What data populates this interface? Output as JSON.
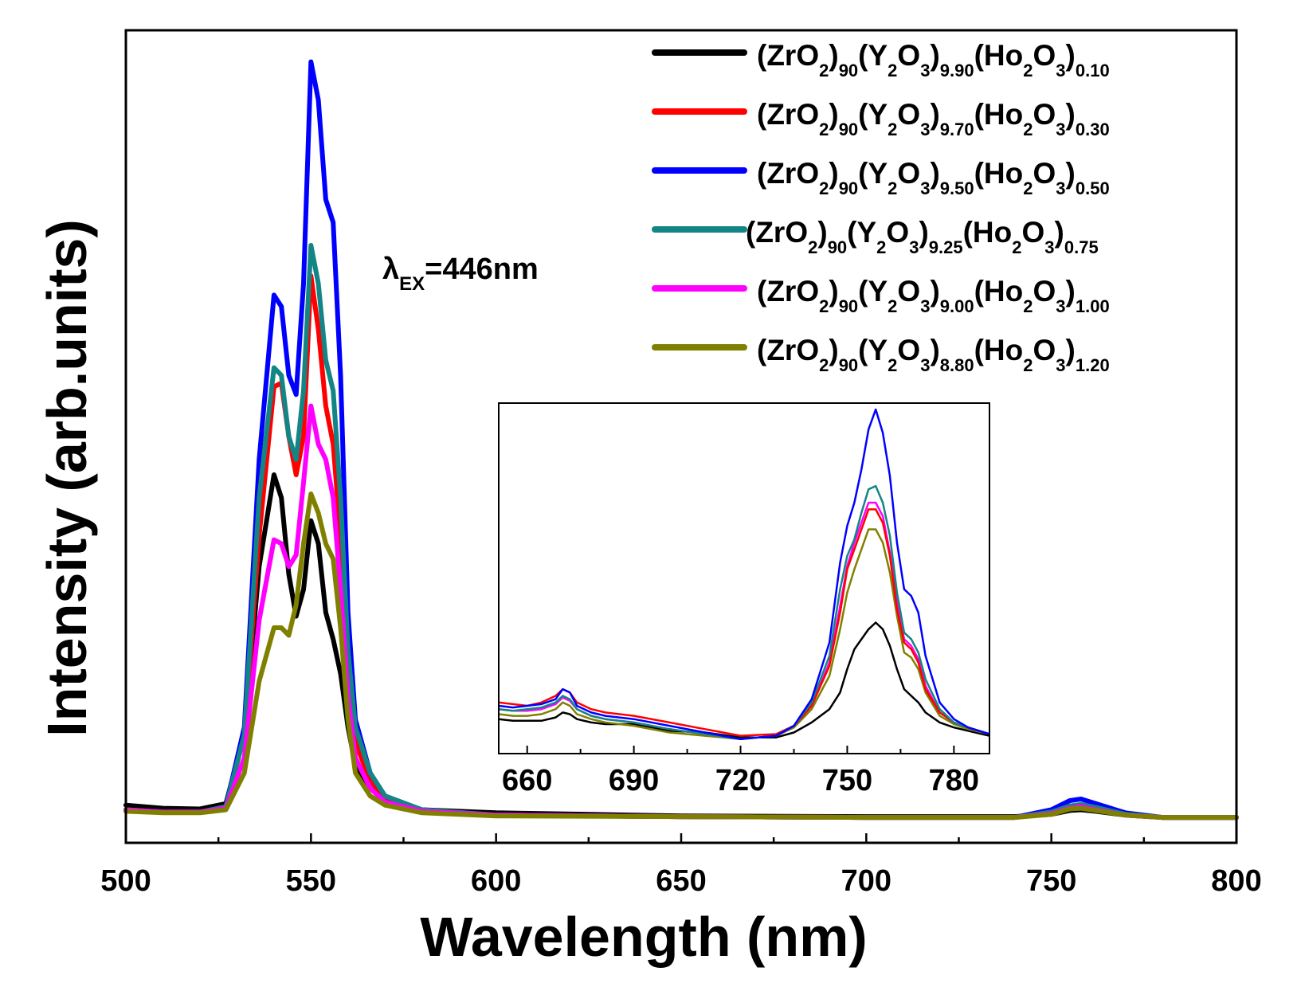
{
  "chart_data": {
    "type": "line",
    "title": "",
    "xlabel": "Wavelength (nm)",
    "ylabel": "Intensity (arb.units)",
    "xlim": [
      500,
      800
    ],
    "ylim": [
      0,
      1.0
    ],
    "xticks": [
      500,
      550,
      600,
      650,
      700,
      750,
      800
    ],
    "annotation": {
      "symbol": "λ",
      "sub": "EX",
      "text": "=446nm"
    },
    "legend_position": "top-right",
    "series": [
      {
        "name": "(ZrO2)90(Y2O3)9.90(Ho2O3)0.10",
        "color": "#000000",
        "parts": [
          [
            "(ZrO",
            ""
          ],
          [
            "2",
            "sub"
          ],
          [
            ")",
            ""
          ],
          [
            "90",
            "sub"
          ],
          [
            "(Y",
            ""
          ],
          [
            "2",
            "sub"
          ],
          [
            "O",
            ""
          ],
          [
            "3",
            "sub"
          ],
          [
            ")",
            ""
          ],
          [
            "9.90",
            "sub"
          ],
          [
            "(Ho",
            ""
          ],
          [
            "2",
            "sub"
          ],
          [
            "O",
            ""
          ],
          [
            "3",
            "sub"
          ],
          [
            ")",
            ""
          ],
          [
            "0.10",
            "sub"
          ]
        ],
        "x": [
          500,
          510,
          520,
          527,
          532,
          536,
          540,
          542,
          544,
          546,
          548,
          550,
          552,
          554,
          556,
          558,
          560,
          562,
          566,
          570,
          580,
          600,
          650,
          700,
          740,
          750,
          755,
          758,
          762,
          770,
          780,
          800
        ],
        "y": [
          0.018,
          0.014,
          0.013,
          0.02,
          0.11,
          0.33,
          0.45,
          0.42,
          0.32,
          0.265,
          0.3,
          0.39,
          0.36,
          0.27,
          0.235,
          0.19,
          0.12,
          0.07,
          0.04,
          0.025,
          0.012,
          0.008,
          0.004,
          0.003,
          0.003,
          0.006,
          0.011,
          0.012,
          0.01,
          0.005,
          0.002,
          0.002
        ]
      },
      {
        "name": "(ZrO2)90(Y2O3)9.70(Ho2O3)0.30",
        "color": "#ff0000",
        "parts": [
          [
            "(ZrO",
            ""
          ],
          [
            "2",
            "sub"
          ],
          [
            ")",
            ""
          ],
          [
            "90",
            "sub"
          ],
          [
            "(Y",
            ""
          ],
          [
            "2",
            "sub"
          ],
          [
            "O",
            ""
          ],
          [
            "3",
            "sub"
          ],
          [
            ")",
            ""
          ],
          [
            "9.70",
            "sub"
          ],
          [
            "(Ho",
            ""
          ],
          [
            "2",
            "sub"
          ],
          [
            "O",
            ""
          ],
          [
            "3",
            "sub"
          ],
          [
            ")",
            ""
          ],
          [
            "0.30",
            "sub"
          ]
        ],
        "x": [
          500,
          510,
          520,
          527,
          532,
          536,
          540,
          542,
          544,
          546,
          548,
          550,
          552,
          554,
          556,
          558,
          560,
          562,
          566,
          570,
          580,
          600,
          650,
          700,
          740,
          750,
          755,
          758,
          762,
          770,
          780,
          800
        ],
        "y": [
          0.012,
          0.009,
          0.009,
          0.015,
          0.11,
          0.37,
          0.565,
          0.57,
          0.5,
          0.45,
          0.5,
          0.71,
          0.64,
          0.54,
          0.49,
          0.37,
          0.2,
          0.1,
          0.05,
          0.028,
          0.012,
          0.005,
          0.003,
          0.002,
          0.002,
          0.007,
          0.015,
          0.016,
          0.013,
          0.006,
          0.002,
          0.002
        ]
      },
      {
        "name": "(ZrO2)90(Y2O3)9.50(Ho2O3)0.50",
        "color": "#0000ff",
        "parts": [
          [
            "(ZrO",
            ""
          ],
          [
            "2",
            "sub"
          ],
          [
            ")",
            ""
          ],
          [
            "90",
            "sub"
          ],
          [
            "(Y",
            ""
          ],
          [
            "2",
            "sub"
          ],
          [
            "O",
            ""
          ],
          [
            "3",
            "sub"
          ],
          [
            ")",
            ""
          ],
          [
            "9.50",
            "sub"
          ],
          [
            "(Ho",
            ""
          ],
          [
            "2",
            "sub"
          ],
          [
            "O",
            ""
          ],
          [
            "3",
            "sub"
          ],
          [
            ")",
            ""
          ],
          [
            "0.50",
            "sub"
          ]
        ],
        "x": [
          500,
          510,
          520,
          527,
          532,
          536,
          540,
          542,
          544,
          546,
          548,
          550,
          552,
          554,
          556,
          558,
          560,
          562,
          566,
          570,
          580,
          600,
          650,
          700,
          740,
          750,
          755,
          758,
          762,
          770,
          780,
          800
        ],
        "y": [
          0.012,
          0.009,
          0.009,
          0.016,
          0.12,
          0.47,
          0.685,
          0.67,
          0.58,
          0.555,
          0.7,
          0.99,
          0.94,
          0.81,
          0.78,
          0.58,
          0.27,
          0.13,
          0.06,
          0.03,
          0.012,
          0.005,
          0.003,
          0.002,
          0.002,
          0.012,
          0.024,
          0.026,
          0.02,
          0.008,
          0.002,
          0.002
        ]
      },
      {
        "name": "(ZrO2)90(Y2O3)9.25(Ho2O3)0.75",
        "color": "#138585",
        "parts": [
          [
            "(ZrO",
            ""
          ],
          [
            "2",
            "sub"
          ],
          [
            ")",
            ""
          ],
          [
            "90",
            "sub"
          ],
          [
            "(Y",
            ""
          ],
          [
            "2",
            "sub"
          ],
          [
            "O",
            ""
          ],
          [
            "3",
            "sub"
          ],
          [
            ")",
            ""
          ],
          [
            "9.25",
            "sub"
          ],
          [
            "(Ho",
            ""
          ],
          [
            "2",
            "sub"
          ],
          [
            "O",
            ""
          ],
          [
            "3",
            "sub"
          ],
          [
            ")",
            ""
          ],
          [
            "0.75",
            "sub"
          ]
        ],
        "x": [
          500,
          510,
          520,
          527,
          532,
          536,
          540,
          542,
          544,
          546,
          548,
          550,
          552,
          554,
          556,
          558,
          560,
          562,
          566,
          570,
          580,
          600,
          650,
          700,
          740,
          750,
          755,
          758,
          762,
          770,
          780,
          800
        ],
        "y": [
          0.012,
          0.009,
          0.009,
          0.016,
          0.11,
          0.42,
          0.59,
          0.58,
          0.5,
          0.47,
          0.56,
          0.75,
          0.7,
          0.6,
          0.56,
          0.42,
          0.22,
          0.12,
          0.06,
          0.03,
          0.012,
          0.005,
          0.003,
          0.002,
          0.002,
          0.009,
          0.017,
          0.019,
          0.015,
          0.006,
          0.002,
          0.002
        ]
      },
      {
        "name": "(ZrO2)90(Y2O3)9.00(Ho2O3)1.00",
        "color": "#ff00ff",
        "parts": [
          [
            "(ZrO",
            ""
          ],
          [
            "2",
            "sub"
          ],
          [
            ")",
            ""
          ],
          [
            "90",
            "sub"
          ],
          [
            "(Y",
            ""
          ],
          [
            "2",
            "sub"
          ],
          [
            "O",
            ""
          ],
          [
            "3",
            "sub"
          ],
          [
            ")",
            ""
          ],
          [
            "9.00",
            "sub"
          ],
          [
            "(Ho",
            ""
          ],
          [
            "2",
            "sub"
          ],
          [
            "O",
            ""
          ],
          [
            "3",
            "sub"
          ],
          [
            ")",
            ""
          ],
          [
            "1.00",
            "sub"
          ]
        ],
        "x": [
          500,
          510,
          520,
          527,
          532,
          536,
          540,
          542,
          544,
          546,
          548,
          550,
          552,
          554,
          556,
          558,
          560,
          562,
          566,
          570,
          580,
          600,
          650,
          700,
          740,
          750,
          755,
          758,
          762,
          770,
          780,
          800
        ],
        "y": [
          0.012,
          0.009,
          0.009,
          0.014,
          0.08,
          0.26,
          0.365,
          0.36,
          0.33,
          0.345,
          0.44,
          0.54,
          0.49,
          0.47,
          0.42,
          0.3,
          0.16,
          0.08,
          0.04,
          0.022,
          0.01,
          0.005,
          0.003,
          0.002,
          0.002,
          0.007,
          0.014,
          0.016,
          0.012,
          0.005,
          0.002,
          0.002
        ]
      },
      {
        "name": "(ZrO2)90(Y2O3)8.80(Ho2O3)1.20",
        "color": "#808000",
        "parts": [
          [
            "(ZrO",
            ""
          ],
          [
            "2",
            "sub"
          ],
          [
            ")",
            ""
          ],
          [
            "90",
            "sub"
          ],
          [
            "(Y",
            ""
          ],
          [
            "2",
            "sub"
          ],
          [
            "O",
            ""
          ],
          [
            "3",
            "sub"
          ],
          [
            ")",
            ""
          ],
          [
            "8.80",
            "sub"
          ],
          [
            "(Ho",
            ""
          ],
          [
            "2",
            "sub"
          ],
          [
            "O",
            ""
          ],
          [
            "3",
            "sub"
          ],
          [
            ")",
            ""
          ],
          [
            "1.20",
            "sub"
          ]
        ],
        "x": [
          500,
          510,
          520,
          527,
          532,
          536,
          540,
          542,
          544,
          546,
          548,
          550,
          552,
          554,
          556,
          558,
          560,
          562,
          566,
          570,
          580,
          600,
          650,
          700,
          740,
          750,
          755,
          758,
          762,
          770,
          780,
          800
        ],
        "y": [
          0.01,
          0.008,
          0.008,
          0.012,
          0.06,
          0.18,
          0.25,
          0.25,
          0.24,
          0.28,
          0.36,
          0.425,
          0.4,
          0.36,
          0.34,
          0.25,
          0.13,
          0.06,
          0.03,
          0.018,
          0.008,
          0.004,
          0.003,
          0.002,
          0.002,
          0.006,
          0.013,
          0.014,
          0.011,
          0.005,
          0.002,
          0.002
        ]
      }
    ],
    "inset": {
      "xlim": [
        652,
        790
      ],
      "ylim": [
        0,
        1.0
      ],
      "xticks": [
        660,
        690,
        720,
        750,
        780
      ],
      "x": [
        652,
        656,
        660,
        664,
        668,
        670,
        672,
        674,
        678,
        682,
        690,
        700,
        710,
        720,
        730,
        735,
        740,
        745,
        748,
        750,
        752,
        754,
        756,
        758,
        760,
        762,
        764,
        766,
        768,
        770,
        772,
        776,
        780,
        784,
        790
      ],
      "series_y": [
        [
          0.07,
          0.065,
          0.065,
          0.065,
          0.075,
          0.09,
          0.085,
          0.07,
          0.06,
          0.055,
          0.055,
          0.035,
          0.03,
          0.015,
          0.015,
          0.03,
          0.06,
          0.1,
          0.15,
          0.22,
          0.28,
          0.31,
          0.34,
          0.36,
          0.34,
          0.29,
          0.22,
          0.16,
          0.14,
          0.12,
          0.09,
          0.06,
          0.045,
          0.035,
          0.02
        ],
        [
          0.12,
          0.115,
          0.11,
          0.12,
          0.14,
          0.16,
          0.15,
          0.12,
          0.1,
          0.09,
          0.08,
          0.06,
          0.04,
          0.02,
          0.025,
          0.05,
          0.11,
          0.23,
          0.39,
          0.52,
          0.58,
          0.64,
          0.7,
          0.7,
          0.66,
          0.56,
          0.4,
          0.3,
          0.28,
          0.24,
          0.16,
          0.09,
          0.06,
          0.045,
          0.025
        ],
        [
          0.11,
          0.105,
          0.11,
          0.115,
          0.13,
          0.16,
          0.15,
          0.11,
          0.09,
          0.08,
          0.07,
          0.05,
          0.03,
          0.01,
          0.02,
          0.05,
          0.13,
          0.3,
          0.54,
          0.65,
          0.72,
          0.82,
          0.94,
          1.0,
          0.93,
          0.8,
          0.6,
          0.46,
          0.44,
          0.39,
          0.26,
          0.12,
          0.07,
          0.045,
          0.025
        ],
        [
          0.1,
          0.095,
          0.1,
          0.105,
          0.12,
          0.14,
          0.13,
          0.1,
          0.08,
          0.07,
          0.06,
          0.04,
          0.025,
          0.01,
          0.02,
          0.05,
          0.12,
          0.26,
          0.46,
          0.56,
          0.61,
          0.69,
          0.76,
          0.77,
          0.72,
          0.62,
          0.45,
          0.33,
          0.31,
          0.27,
          0.19,
          0.1,
          0.06,
          0.045,
          0.025
        ],
        [
          0.1,
          0.095,
          0.095,
          0.1,
          0.115,
          0.135,
          0.125,
          0.1,
          0.08,
          0.07,
          0.06,
          0.04,
          0.025,
          0.01,
          0.02,
          0.05,
          0.11,
          0.24,
          0.41,
          0.53,
          0.6,
          0.66,
          0.72,
          0.72,
          0.68,
          0.57,
          0.42,
          0.31,
          0.29,
          0.25,
          0.17,
          0.09,
          0.06,
          0.045,
          0.025
        ],
        [
          0.085,
          0.08,
          0.08,
          0.085,
          0.1,
          0.12,
          0.11,
          0.085,
          0.07,
          0.06,
          0.05,
          0.03,
          0.02,
          0.01,
          0.02,
          0.045,
          0.1,
          0.2,
          0.34,
          0.45,
          0.52,
          0.58,
          0.64,
          0.64,
          0.6,
          0.51,
          0.38,
          0.27,
          0.255,
          0.22,
          0.15,
          0.08,
          0.055,
          0.04,
          0.025
        ]
      ]
    }
  }
}
